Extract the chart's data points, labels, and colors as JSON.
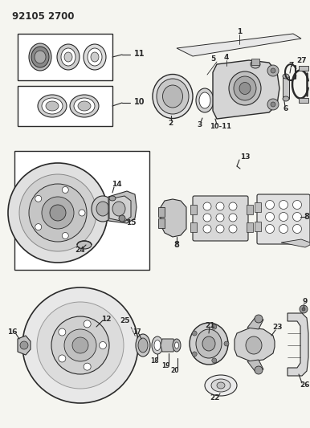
{
  "title": "92105 2700",
  "bg_color": "#f5f5f0",
  "line_color": "#2a2a2a",
  "figsize": [
    3.86,
    5.33
  ],
  "dpi": 100
}
